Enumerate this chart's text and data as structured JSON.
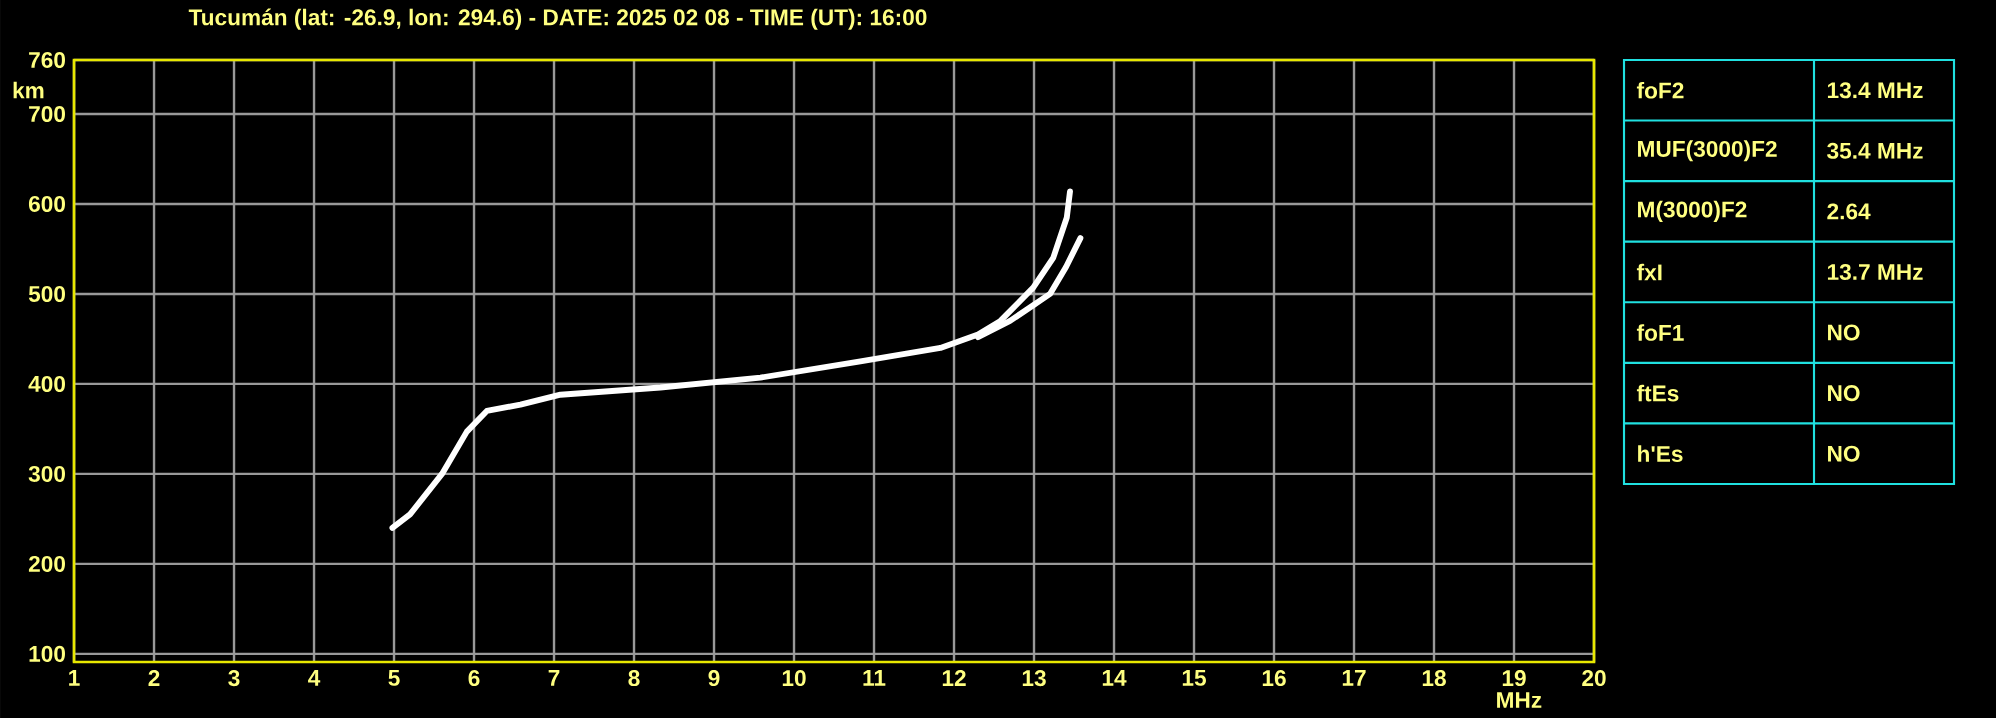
{
  "chart_data": {
    "type": "line",
    "title": "Tucumán (lat: -26.9, lon: 294.6) - DATE: 2025 02 08 - TIME (UT): 16:00",
    "xlabel": "MHz",
    "ylabel": "km",
    "xlim": [
      1,
      20
    ],
    "ylim": [
      91,
      760
    ],
    "xticks": [
      1,
      2,
      3,
      4,
      5,
      6,
      7,
      8,
      9,
      10,
      11,
      12,
      13,
      14,
      15,
      16,
      17,
      18,
      19,
      20
    ],
    "yticks": [
      100,
      200,
      300,
      400,
      500,
      600,
      700,
      760
    ],
    "grid": true,
    "marker": "none",
    "line_style": "solid",
    "series": [
      {
        "color": "#ffffff",
        "x": [
          4.98,
          5.2,
          5.6,
          5.91,
          6.16,
          6.58,
          7.08,
          8.33,
          9.58,
          10.83,
          11.83,
          12.3,
          12.58,
          12.99,
          13.24,
          13.41,
          13.45
        ],
        "values": [
          240,
          255,
          300,
          347,
          370,
          377,
          388,
          396,
          407,
          425,
          440,
          455,
          470,
          507,
          540,
          585,
          614
        ]
      },
      {
        "color": "#ffffff",
        "x": [
          12.3,
          12.7,
          13.0,
          13.2,
          13.4,
          13.58
        ],
        "values": [
          452,
          470,
          488,
          500,
          530,
          562
        ]
      }
    ],
    "annotations": [
      "foF2",
      "13.4 MHz",
      "MUF(3000)F2",
      "35.4 MHz",
      "M(3000)F2",
      "2.64",
      "fxI",
      "13.7 MHz",
      "foF1",
      "NO",
      "ftEs",
      "NO",
      "h'Es",
      "NO"
    ]
  }
}
